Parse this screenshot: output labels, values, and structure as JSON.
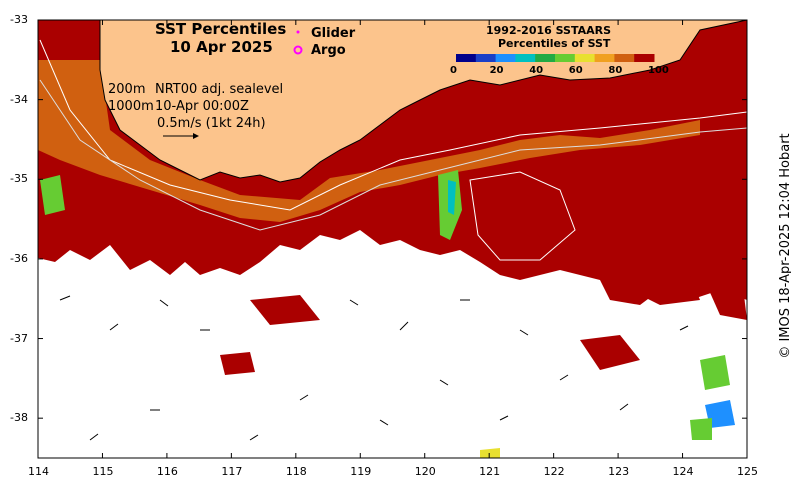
{
  "title": {
    "line1": "SST Percentiles",
    "line2": "10 Apr 2025"
  },
  "markers": {
    "glider": "Glider",
    "argo": "Argo"
  },
  "colorbar": {
    "title_line1": "1992-2016 SSTAARS",
    "title_line2": "Percentiles of SST",
    "ticks": [
      "0",
      "20",
      "40",
      "60",
      "80",
      "100"
    ],
    "colors": [
      "#00008b",
      "#1a3fc7",
      "#1e90ff",
      "#00c0c0",
      "#22aa44",
      "#66cc33",
      "#e8e030",
      "#f0a020",
      "#d06010",
      "#aa0000"
    ]
  },
  "annotations": {
    "depth_200": "200m",
    "depth_1000": "1000m",
    "sealevel": "NRT00 adj. sealevel",
    "datetime": "10-Apr 00:00Z",
    "scale": "0.5m/s (1kt 24h)"
  },
  "axes": {
    "x_ticks": [
      "114",
      "115",
      "116",
      "117",
      "118",
      "119",
      "120",
      "121",
      "122",
      "123",
      "124",
      "125"
    ],
    "y_ticks": [
      "-33",
      "-34",
      "-35",
      "-36",
      "-37",
      "-38"
    ],
    "lon_range": [
      114,
      125
    ],
    "lat_range": [
      -38.5,
      -33
    ]
  },
  "credit": "© IMOS 18-Apr-2025 12:04 Hobart",
  "colors": {
    "land": "#fcc48c",
    "sst_high": "#aa0000",
    "sst_mid": "#d06010",
    "ocean_empty": "#ffffff"
  }
}
